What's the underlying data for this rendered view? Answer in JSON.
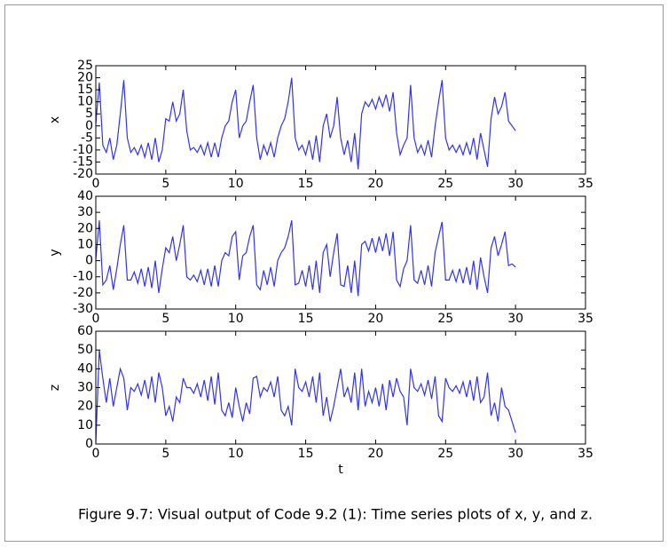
{
  "chart_data": [
    {
      "type": "line",
      "ylabel": "x",
      "color": "#3333ee",
      "x": [
        0,
        0.25,
        0.5,
        0.75,
        1,
        1.25,
        1.5,
        1.75,
        2,
        2.25,
        2.5,
        2.75,
        3,
        3.25,
        3.5,
        3.75,
        4,
        4.25,
        4.5,
        4.75,
        5,
        5.25,
        5.5,
        5.75,
        6,
        6.25,
        6.5,
        6.75,
        7,
        7.25,
        7.5,
        7.75,
        8,
        8.25,
        8.5,
        8.75,
        9,
        9.25,
        9.5,
        9.75,
        10,
        10.25,
        10.5,
        10.75,
        11,
        11.25,
        11.5,
        11.75,
        12,
        12.25,
        12.5,
        12.75,
        13,
        13.25,
        13.5,
        13.75,
        14,
        14.25,
        14.5,
        14.75,
        15,
        15.25,
        15.5,
        15.75,
        16,
        16.25,
        16.5,
        16.75,
        17,
        17.25,
        17.5,
        17.75,
        18,
        18.25,
        18.5,
        18.75,
        19,
        19.25,
        19.5,
        19.75,
        20,
        20.25,
        20.5,
        20.75,
        21,
        21.25,
        21.5,
        21.75,
        22,
        22.25,
        22.5,
        22.75,
        23,
        23.25,
        23.5,
        23.75,
        24,
        24.25,
        24.5,
        24.75,
        25,
        25.25,
        25.5,
        25.75,
        26,
        26.25,
        26.5,
        26.75,
        27,
        27.25,
        27.5,
        27.75,
        28,
        28.25,
        28.5,
        28.75,
        29,
        29.25,
        29.5,
        29.75,
        30
      ],
      "values": [
        1,
        18,
        -8,
        -11,
        -5,
        -14,
        -8,
        5,
        19,
        -5,
        -11,
        -9,
        -12,
        -8,
        -13,
        -7,
        -14,
        -5,
        -15,
        -10,
        3,
        2,
        10,
        2,
        5,
        15,
        -2,
        -10,
        -9,
        -11,
        -8,
        -12,
        -7,
        -13,
        -7,
        -13,
        -5,
        0,
        2,
        10,
        15,
        -5,
        0,
        2,
        10,
        17,
        -5,
        -14,
        -8,
        -12,
        -7,
        -13,
        -5,
        0,
        3,
        10,
        20,
        -5,
        -10,
        -8,
        -12,
        -6,
        -14,
        -4,
        -15,
        0,
        5,
        -5,
        0,
        12,
        -5,
        -12,
        -6,
        -15,
        -3,
        -18,
        5,
        10,
        8,
        11,
        7,
        12,
        8,
        13,
        6,
        14,
        -3,
        -12,
        -8,
        -5,
        17,
        -5,
        -11,
        -8,
        -12,
        -6,
        -13,
        0,
        10,
        19,
        -5,
        -10,
        -8,
        -11,
        -8,
        -12,
        -7,
        -12,
        -5,
        -14,
        -3,
        -10,
        -17,
        3,
        12,
        5,
        8,
        14,
        2,
        0,
        -2
      ],
      "xlim": [
        0,
        35
      ],
      "xticks": [
        0,
        5,
        10,
        15,
        20,
        25,
        30,
        35
      ],
      "ylim": [
        -20,
        25
      ],
      "yticks": [
        -20,
        -15,
        -10,
        -5,
        0,
        5,
        10,
        15,
        20,
        25
      ],
      "grid": false
    },
    {
      "type": "line",
      "ylabel": "y",
      "color": "#3333ee",
      "x": [
        0,
        0.25,
        0.5,
        0.75,
        1,
        1.25,
        1.5,
        1.75,
        2,
        2.25,
        2.5,
        2.75,
        3,
        3.25,
        3.5,
        3.75,
        4,
        4.25,
        4.5,
        4.75,
        5,
        5.25,
        5.5,
        5.75,
        6,
        6.25,
        6.5,
        6.75,
        7,
        7.25,
        7.5,
        7.75,
        8,
        8.25,
        8.5,
        8.75,
        9,
        9.25,
        9.5,
        9.75,
        10,
        10.25,
        10.5,
        10.75,
        11,
        11.25,
        11.5,
        11.75,
        12,
        12.25,
        12.5,
        12.75,
        13,
        13.25,
        13.5,
        13.75,
        14,
        14.25,
        14.5,
        14.75,
        15,
        15.25,
        15.5,
        15.75,
        16,
        16.25,
        16.5,
        16.75,
        17,
        17.25,
        17.5,
        17.75,
        18,
        18.25,
        18.5,
        18.75,
        19,
        19.25,
        19.5,
        19.75,
        20,
        20.25,
        20.5,
        20.75,
        21,
        21.25,
        21.5,
        21.75,
        22,
        22.25,
        22.5,
        22.75,
        23,
        23.25,
        23.5,
        23.75,
        24,
        24.25,
        24.5,
        24.75,
        25,
        25.25,
        25.5,
        25.75,
        26,
        26.25,
        26.5,
        26.75,
        27,
        27.25,
        27.5,
        27.75,
        28,
        28.25,
        28.5,
        28.75,
        29,
        29.25,
        29.5,
        29.75,
        30
      ],
      "values": [
        1,
        25,
        -15,
        -12,
        -3,
        -18,
        -5,
        10,
        22,
        -12,
        -12,
        -7,
        -14,
        -5,
        -16,
        -4,
        -17,
        0,
        -20,
        -5,
        8,
        5,
        15,
        0,
        10,
        22,
        -10,
        -12,
        -9,
        -13,
        -6,
        -15,
        -5,
        -16,
        -3,
        -16,
        0,
        5,
        3,
        15,
        18,
        -12,
        3,
        5,
        15,
        22,
        -15,
        -18,
        -6,
        -15,
        -4,
        -16,
        0,
        5,
        8,
        15,
        25,
        -15,
        -14,
        -6,
        -16,
        -3,
        -18,
        0,
        -20,
        5,
        10,
        -10,
        5,
        17,
        -15,
        -16,
        -3,
        -20,
        0,
        -22,
        10,
        12,
        6,
        14,
        5,
        15,
        6,
        17,
        3,
        18,
        -12,
        -16,
        -5,
        0,
        22,
        -12,
        -14,
        -6,
        -15,
        -3,
        -16,
        5,
        15,
        24,
        -12,
        -12,
        -6,
        -13,
        -5,
        -14,
        -4,
        -15,
        0,
        -18,
        2,
        -10,
        -20,
        8,
        15,
        3,
        10,
        18,
        -3,
        -2,
        -4
      ],
      "xlim": [
        0,
        35
      ],
      "xticks": [
        0,
        5,
        10,
        15,
        20,
        25,
        30,
        35
      ],
      "ylim": [
        -30,
        40
      ],
      "yticks": [
        -30,
        -20,
        -10,
        0,
        10,
        20,
        30,
        40
      ],
      "grid": false
    },
    {
      "type": "line",
      "ylabel": "z",
      "xlabel": "t",
      "color": "#3333ee",
      "x": [
        0,
        0.25,
        0.5,
        0.75,
        1,
        1.25,
        1.5,
        1.75,
        2,
        2.25,
        2.5,
        2.75,
        3,
        3.25,
        3.5,
        3.75,
        4,
        4.25,
        4.5,
        4.75,
        5,
        5.25,
        5.5,
        5.75,
        6,
        6.25,
        6.5,
        6.75,
        7,
        7.25,
        7.5,
        7.75,
        8,
        8.25,
        8.5,
        8.75,
        9,
        9.25,
        9.5,
        9.75,
        10,
        10.25,
        10.5,
        10.75,
        11,
        11.25,
        11.5,
        11.75,
        12,
        12.25,
        12.5,
        12.75,
        13,
        13.25,
        13.5,
        13.75,
        14,
        14.25,
        14.5,
        14.75,
        15,
        15.25,
        15.5,
        15.75,
        16,
        16.25,
        16.5,
        16.75,
        17,
        17.25,
        17.5,
        17.75,
        18,
        18.25,
        18.5,
        18.75,
        19,
        19.25,
        19.5,
        19.75,
        20,
        20.25,
        20.5,
        20.75,
        21,
        21.25,
        21.5,
        21.75,
        22,
        22.25,
        22.5,
        22.75,
        23,
        23.25,
        23.5,
        23.75,
        24,
        24.25,
        24.5,
        24.75,
        25,
        25.25,
        25.5,
        25.75,
        26,
        26.25,
        26.5,
        26.75,
        27,
        27.25,
        27.5,
        27.75,
        28,
        28.25,
        28.5,
        28.75,
        29,
        29.25,
        29.5,
        29.75,
        30
      ],
      "values": [
        1,
        50,
        35,
        22,
        35,
        20,
        30,
        40,
        35,
        18,
        30,
        28,
        32,
        26,
        34,
        24,
        36,
        22,
        38,
        30,
        15,
        20,
        12,
        25,
        22,
        35,
        30,
        30,
        27,
        32,
        25,
        34,
        23,
        36,
        21,
        38,
        18,
        15,
        22,
        14,
        30,
        20,
        12,
        22,
        16,
        35,
        36,
        25,
        30,
        28,
        33,
        25,
        36,
        18,
        15,
        20,
        10,
        40,
        30,
        28,
        33,
        25,
        36,
        22,
        38,
        15,
        25,
        12,
        20,
        30,
        40,
        25,
        30,
        22,
        38,
        18,
        40,
        20,
        28,
        22,
        30,
        20,
        32,
        18,
        34,
        25,
        35,
        28,
        25,
        10,
        40,
        30,
        28,
        32,
        26,
        34,
        24,
        36,
        15,
        12,
        35,
        30,
        28,
        31,
        27,
        33,
        25,
        34,
        23,
        36,
        22,
        25,
        38,
        15,
        22,
        12,
        30,
        20,
        18,
        12,
        6
      ],
      "xlim": [
        0,
        35
      ],
      "xticks": [
        0,
        5,
        10,
        15,
        20,
        25,
        30,
        35
      ],
      "ylim": [
        0,
        60
      ],
      "yticks": [
        0,
        10,
        20,
        30,
        40,
        50,
        60
      ],
      "grid": false
    }
  ],
  "caption": "Figure 9.7: Visual output of Code 9.2 (1): Time series plots of x, y, and z."
}
